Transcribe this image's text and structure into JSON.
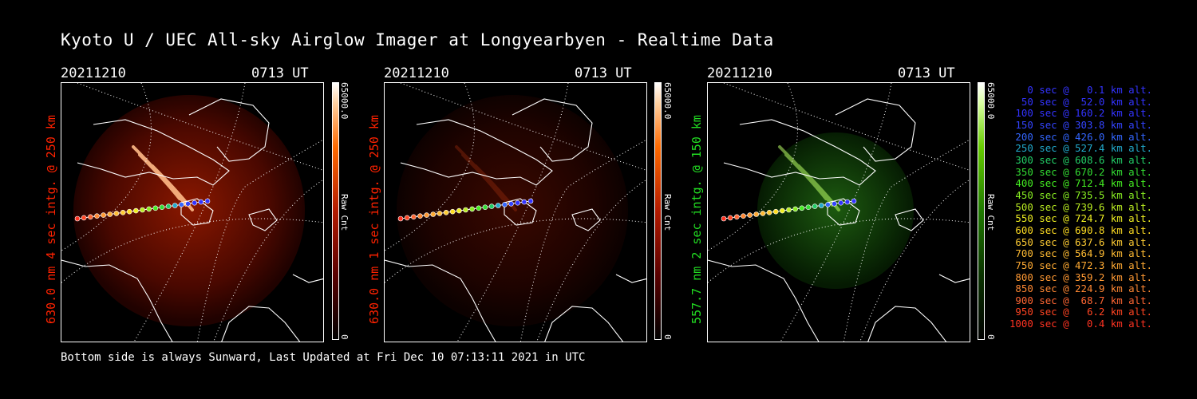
{
  "title": "Kyoto U / UEC All-sky Airglow Imager at Longyearbyen - Realtime Data",
  "footer": "Bottom side is always Sunward, Last Updated at Fri Dec 10 07:13:11 2021 in UTC",
  "panels": [
    {
      "date": "20211210",
      "time": "0713 UT",
      "ylabel": "630.0 nm 4 sec intg. @ 250 km",
      "cbar_max": "65000.0",
      "cbar_min": "0",
      "cbar_unit": "Raw Cnt",
      "color": "#ff2200",
      "scheme": "red"
    },
    {
      "date": "20211210",
      "time": "0713 UT",
      "ylabel": "630.0 nm 1 sec intg. @ 250 km",
      "cbar_max": "65000.0",
      "cbar_min": "0",
      "cbar_unit": "Raw Cnt",
      "color": "#ff2200",
      "scheme": "dimred"
    },
    {
      "date": "20211210",
      "time": "0713 UT",
      "ylabel": "557.7 nm 2 sec intg. @ 150 km",
      "cbar_max": "65000.0",
      "cbar_min": "0",
      "cbar_unit": "Raw Cnt",
      "color": "#22dd22",
      "scheme": "green"
    }
  ],
  "legend": [
    {
      "text": "0 sec @   0.1 km alt.",
      "color": "#3333ff"
    },
    {
      "text": "50 sec @  52.0 km alt.",
      "color": "#3333ff"
    },
    {
      "text": "100 sec @ 160.2 km alt.",
      "color": "#3333ff"
    },
    {
      "text": "150 sec @ 303.8 km alt.",
      "color": "#3344ff"
    },
    {
      "text": "200 sec @ 426.0 km alt.",
      "color": "#3366ff"
    },
    {
      "text": "250 sec @ 527.4 km alt.",
      "color": "#22aacc"
    },
    {
      "text": "300 sec @ 608.6 km alt.",
      "color": "#22cc66"
    },
    {
      "text": "350 sec @ 670.2 km alt.",
      "color": "#33dd33"
    },
    {
      "text": "400 sec @ 712.4 km alt.",
      "color": "#44ee22"
    },
    {
      "text": "450 sec @ 735.5 km alt.",
      "color": "#88ee22"
    },
    {
      "text": "500 sec @ 739.6 km alt.",
      "color": "#bbee22"
    },
    {
      "text": "550 sec @ 724.7 km alt.",
      "color": "#eeee22"
    },
    {
      "text": "600 sec @ 690.8 km alt.",
      "color": "#ffdd22"
    },
    {
      "text": "650 sec @ 637.6 km alt.",
      "color": "#ffcc33"
    },
    {
      "text": "700 sec @ 564.9 km alt.",
      "color": "#ffbb33"
    },
    {
      "text": "750 sec @ 472.3 km alt.",
      "color": "#ffaa33"
    },
    {
      "text": "800 sec @ 359.2 km alt.",
      "color": "#ff9933"
    },
    {
      "text": "850 sec @ 224.9 km alt.",
      "color": "#ff8833"
    },
    {
      "text": "900 sec @  68.7 km alt.",
      "color": "#ff6633"
    },
    {
      "text": "950 sec @   6.2 km alt.",
      "color": "#ff4422"
    },
    {
      "text": "1000 sec @   0.4 km alt.",
      "color": "#ff3322"
    }
  ]
}
